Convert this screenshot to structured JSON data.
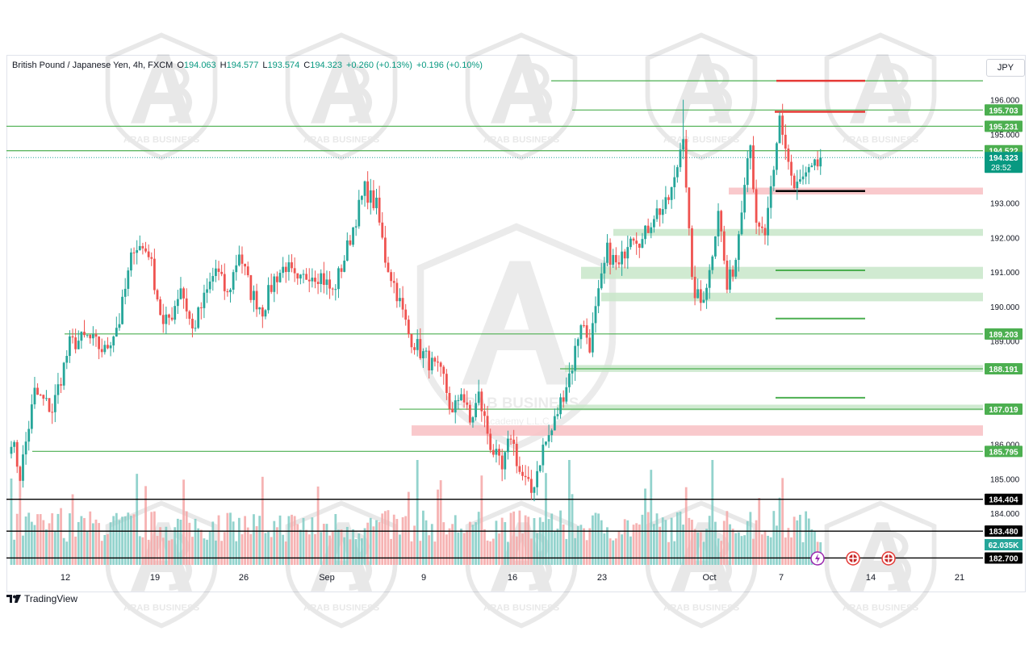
{
  "header": {
    "symbol": "British Pound / Japanese Yen, 4h, FXCM",
    "open_label": "O",
    "open": "194.063",
    "high_label": "H",
    "high": "194.577",
    "low_label": "L",
    "low": "193.574",
    "close_label": "C",
    "close": "194.323",
    "change1": "+0.260 (+0.13%)",
    "change2": "+0.196 (+0.10%)"
  },
  "currency_button": "JPY",
  "watermark": {
    "brand": "ARAB BUSINESS",
    "sub": "Academy L.L.C"
  },
  "branding": {
    "name": "TradingView"
  },
  "colors": {
    "up": "#26a69a",
    "down": "#ef5350",
    "level": "#4caf50",
    "zone_green": "#c8e6c9",
    "zone_red": "#f8c3c6",
    "black": "#000000",
    "red_line": "#e53935"
  },
  "chart_data": {
    "type": "candlestick",
    "timeframe": "4h",
    "ylim": [
      182.5,
      196.6
    ],
    "y_ticks": [
      184.0,
      185.0,
      186.0,
      189.0,
      190.0,
      191.0,
      192.0,
      193.0,
      195.0,
      196.0
    ],
    "y_tick_labels": [
      "184.000",
      "185.000",
      "186.000",
      "189.000",
      "190.000",
      "191.000",
      "192.000",
      "193.000",
      "195.000",
      "196.000"
    ],
    "x_labels": [
      "12",
      "19",
      "26",
      "Sep",
      "9",
      "16",
      "23",
      "Oct",
      "7",
      "14",
      "21"
    ],
    "anchors": [
      [
        0,
        186.2
      ],
      [
        3,
        185.1
      ],
      [
        8,
        187.5
      ],
      [
        14,
        187.0
      ],
      [
        20,
        188.9
      ],
      [
        26,
        189.1
      ],
      [
        32,
        188.7
      ],
      [
        37,
        189.6
      ],
      [
        42,
        191.8
      ],
      [
        47,
        191.6
      ],
      [
        52,
        189.4
      ],
      [
        55,
        189.8
      ],
      [
        58,
        190.6
      ],
      [
        62,
        189.3
      ],
      [
        66,
        190.2
      ],
      [
        70,
        191.1
      ],
      [
        74,
        190.3
      ],
      [
        78,
        191.6
      ],
      [
        82,
        190.4
      ],
      [
        86,
        189.9
      ],
      [
        90,
        190.8
      ],
      [
        94,
        191.2
      ],
      [
        98,
        190.6
      ],
      [
        102,
        191.0
      ],
      [
        106,
        190.9
      ],
      [
        110,
        190.4
      ],
      [
        114,
        191.4
      ],
      [
        118,
        192.6
      ],
      [
        121,
        193.4
      ],
      [
        125,
        192.9
      ],
      [
        128,
        191.4
      ],
      [
        132,
        190.4
      ],
      [
        136,
        189.2
      ],
      [
        140,
        188.7
      ],
      [
        144,
        188.3
      ],
      [
        148,
        187.9
      ],
      [
        151,
        186.8
      ],
      [
        154,
        187.6
      ],
      [
        157,
        186.6
      ],
      [
        160,
        187.4
      ],
      [
        164,
        186.0
      ],
      [
        168,
        185.2
      ],
      [
        171,
        186.3
      ],
      [
        174,
        185.2
      ],
      [
        178,
        184.6
      ],
      [
        182,
        185.9
      ],
      [
        185,
        186.4
      ],
      [
        189,
        187.5
      ],
      [
        192,
        188.3
      ],
      [
        195,
        189.6
      ],
      [
        198,
        188.9
      ],
      [
        201,
        190.3
      ],
      [
        204,
        191.6
      ],
      [
        208,
        191.1
      ],
      [
        212,
        192.2
      ],
      [
        216,
        191.9
      ],
      [
        220,
        192.7
      ],
      [
        224,
        192.9
      ],
      [
        227,
        193.6
      ],
      [
        230,
        195.1
      ],
      [
        233,
        190.6
      ],
      [
        236,
        190.1
      ],
      [
        239,
        191.0
      ],
      [
        242,
        192.9
      ],
      [
        245,
        190.5
      ],
      [
        248,
        191.4
      ],
      [
        251,
        193.8
      ],
      [
        253,
        194.9
      ],
      [
        255,
        192.2
      ],
      [
        258,
        192.1
      ],
      [
        261,
        193.8
      ],
      [
        263,
        195.5
      ],
      [
        266,
        194.2
      ],
      [
        268,
        193.4
      ],
      [
        271,
        193.7
      ],
      [
        274,
        193.9
      ],
      [
        276,
        194.1
      ],
      [
        277,
        194.32
      ]
    ],
    "levels": {
      "green_lines": [
        {
          "price": 196.55,
          "label": ""
        },
        {
          "price": 195.703,
          "label": "195.703"
        },
        {
          "price": 195.231,
          "label": "195.231"
        },
        {
          "price": 194.522,
          "label": "194.522"
        },
        {
          "price": 189.203,
          "label": "189.203"
        },
        {
          "price": 188.191,
          "label": "188.191"
        },
        {
          "price": 187.019,
          "label": "187.019"
        },
        {
          "price": 185.795,
          "label": "185.795"
        }
      ],
      "black_lines": [
        {
          "price": 184.404,
          "label": "184.404"
        },
        {
          "price": 183.48,
          "label": "183.480"
        },
        {
          "price": 182.7,
          "label": "182.700"
        }
      ],
      "last_price": {
        "price": 194.323,
        "label": "194.323",
        "countdown": "28:52"
      },
      "volume_label": "62.035K",
      "green_zones": [
        [
          192.05,
          192.25
        ],
        [
          190.8,
          191.15
        ],
        [
          190.15,
          190.4
        ],
        [
          188.1,
          188.3
        ],
        [
          187.0,
          187.15
        ]
      ],
      "red_zones": [
        [
          193.25,
          193.45
        ],
        [
          186.25,
          186.55
        ]
      ],
      "short_green": [
        191.05,
        189.65,
        187.35
      ],
      "short_red": [
        196.55,
        195.65
      ],
      "short_black": [
        193.35
      ]
    }
  }
}
